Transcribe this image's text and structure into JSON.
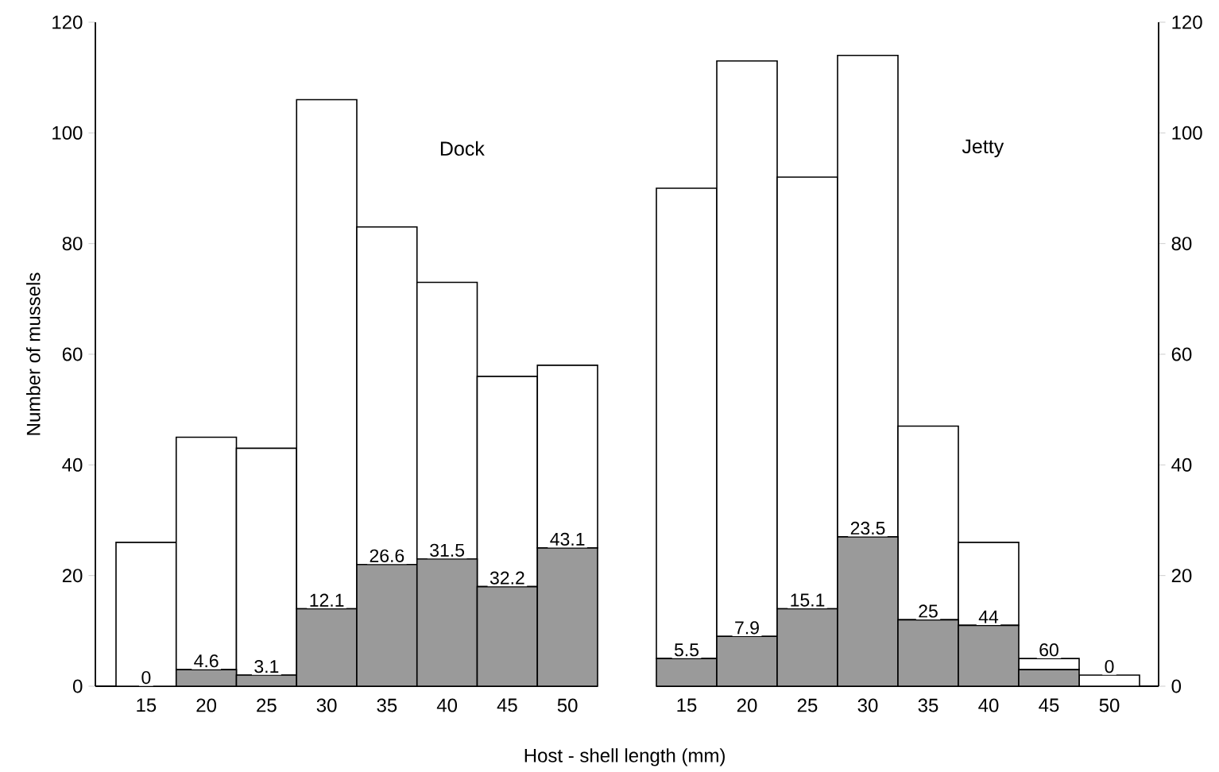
{
  "chart_data": [
    {
      "type": "bar",
      "title": "Dock",
      "xlabel": "Host - shell length (mm)",
      "ylabel": "Number of mussels",
      "categories": [
        "15",
        "20",
        "25",
        "30",
        "35",
        "40",
        "45",
        "50"
      ],
      "stacked": true,
      "ylim": [
        0,
        120
      ],
      "yticks": [
        0,
        20,
        40,
        60,
        80,
        100,
        120
      ],
      "series": [
        {
          "color": "#9a9a9a",
          "values": [
            0,
            3,
            2,
            14,
            22,
            23,
            18,
            25
          ]
        },
        {
          "color": "#ffffff",
          "values": [
            26,
            42,
            41,
            92,
            61,
            50,
            38,
            33
          ]
        }
      ],
      "annotations": [
        {
          "text": "0",
          "x": "15",
          "y": 0
        },
        {
          "text": "4.6",
          "x": "20",
          "y": 3
        },
        {
          "text": "3.1",
          "x": "25",
          "y": 2
        },
        {
          "text": "12.1",
          "x": "30",
          "y": 14
        },
        {
          "text": "26.6",
          "x": "35",
          "y": 22
        },
        {
          "text": "31.5",
          "x": "40",
          "y": 23
        },
        {
          "text": "32.2",
          "x": "45",
          "y": 18
        },
        {
          "text": "43.1",
          "x": "50",
          "y": 25
        }
      ]
    },
    {
      "type": "bar",
      "title": "Jetty",
      "categories": [
        "15",
        "20",
        "25",
        "30",
        "35",
        "40",
        "45",
        "50"
      ],
      "stacked": true,
      "ylim": [
        0,
        120
      ],
      "yticks": [
        0,
        20,
        40,
        60,
        80,
        100,
        120
      ],
      "series": [
        {
          "color": "#9a9a9a",
          "values": [
            5,
            9,
            14,
            27,
            12,
            11,
            3,
            0
          ]
        },
        {
          "color": "#ffffff",
          "values": [
            85,
            104,
            78,
            87,
            35,
            15,
            2,
            2
          ]
        }
      ],
      "annotations": [
        {
          "text": "5.5",
          "x": "15",
          "y": 5
        },
        {
          "text": "7.9",
          "x": "20",
          "y": 9
        },
        {
          "text": "15.1",
          "x": "25",
          "y": 14
        },
        {
          "text": "23.5",
          "x": "30",
          "y": 27
        },
        {
          "text": "25",
          "x": "35",
          "y": 12
        },
        {
          "text": "44",
          "x": "40",
          "y": 11
        },
        {
          "text": "60",
          "x": "45",
          "y": 3
        },
        {
          "text": "0",
          "x": "50",
          "y": 0
        }
      ]
    }
  ]
}
